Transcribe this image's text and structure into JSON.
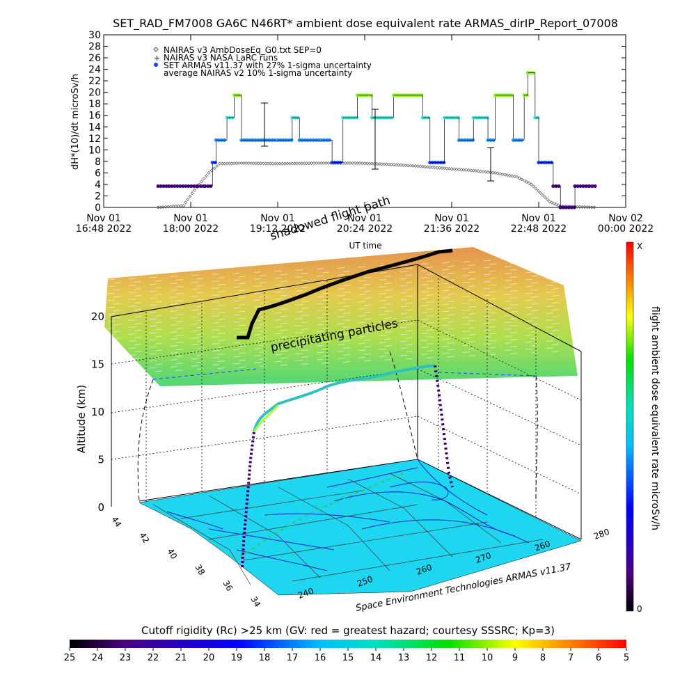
{
  "title": "SET_RAD_FM7008  GA6C N46RT* ambient dose equivalent rate ARMAS_dirIP_Report_07008",
  "chart_data": [
    {
      "type": "scatter",
      "ylabel": "dH*(10)/dt microSv/h",
      "xlabel": "UT time",
      "ylim": [
        0,
        30
      ],
      "yticks": [
        "0",
        "2",
        "4",
        "6",
        "8",
        "10",
        "12",
        "14",
        "16",
        "18",
        "20",
        "22",
        "24",
        "26",
        "28",
        "30"
      ],
      "xticks": [
        {
          "l1": "Nov 01",
          "l2": "16:48 2022"
        },
        {
          "l1": "Nov 01",
          "l2": "18:00 2022"
        },
        {
          "l1": "Nov 01",
          "l2": "19:12 2022"
        },
        {
          "l1": "Nov 01",
          "l2": "20:24 2022"
        },
        {
          "l1": "Nov 01",
          "l2": "21:36 2022"
        },
        {
          "l1": "Nov 01",
          "l2": "22:48 2022"
        },
        {
          "l1": "Nov 02",
          "l2": "00:00 2022"
        }
      ],
      "xrange_hours": [
        16.8,
        24.0
      ],
      "legend": [
        "NAIRAS v3 AmbDoseEq_G0.txt SEP=0",
        "NAIRAS v3 NASA LaRC runs",
        "SET ARMAS v11.37 with 27% 1-sigma uncertainty",
        "average NAIRAS v2 10% 1-sigma uncertainty"
      ],
      "legend_position": "top-left",
      "series_nairas": [
        [
          17.55,
          0
        ],
        [
          17.9,
          0.3
        ],
        [
          18.05,
          3
        ],
        [
          18.25,
          6
        ],
        [
          18.4,
          7.6
        ],
        [
          18.7,
          7.7
        ],
        [
          19.2,
          7.6
        ],
        [
          19.8,
          7.7
        ],
        [
          20.3,
          7.7
        ],
        [
          20.7,
          7.5
        ],
        [
          21.1,
          7.2
        ],
        [
          21.5,
          6.8
        ],
        [
          21.9,
          6.4
        ],
        [
          22.2,
          6.0
        ],
        [
          22.5,
          5.3
        ],
        [
          22.7,
          4.0
        ],
        [
          22.95,
          1.0
        ],
        [
          23.1,
          0.2
        ],
        [
          23.6,
          0
        ]
      ],
      "series_armas": [
        [
          17.55,
          3.7
        ],
        [
          17.7,
          3.7
        ],
        [
          18.1,
          3.7
        ],
        [
          18.2,
          3.7
        ],
        [
          18.3,
          7.8
        ],
        [
          18.35,
          11.7
        ],
        [
          18.5,
          15.6
        ],
        [
          18.6,
          19.5
        ],
        [
          18.7,
          11.7
        ],
        [
          19.2,
          11.7
        ],
        [
          19.4,
          15.6
        ],
        [
          19.5,
          11.7
        ],
        [
          19.8,
          11.7
        ],
        [
          19.95,
          7.8
        ],
        [
          20.1,
          15.6
        ],
        [
          20.3,
          19.5
        ],
        [
          20.5,
          15.6
        ],
        [
          20.8,
          19.5
        ],
        [
          21.2,
          15.6
        ],
        [
          21.3,
          7.8
        ],
        [
          21.5,
          15.6
        ],
        [
          21.7,
          11.7
        ],
        [
          21.9,
          15.6
        ],
        [
          22.1,
          11.7
        ],
        [
          22.2,
          19.5
        ],
        [
          22.45,
          11.7
        ],
        [
          22.6,
          19.5
        ],
        [
          22.65,
          23.4
        ],
        [
          22.75,
          15.6
        ],
        [
          22.8,
          7.8
        ],
        [
          22.9,
          7.8
        ],
        [
          23.0,
          3.7
        ],
        [
          23.1,
          0
        ],
        [
          23.3,
          3.7
        ],
        [
          23.5,
          3.7
        ]
      ]
    },
    {
      "type": "surface3d",
      "ylabel": "Altitude (km)",
      "zticks": [
        "0",
        "5",
        "10",
        "15",
        "20"
      ],
      "lat_ticks": [
        "44",
        "42",
        "40",
        "38",
        "36",
        "34"
      ],
      "lon_ticks": [
        "240",
        "250",
        "260",
        "270",
        "260",
        "280"
      ],
      "colorbar_label": "flight ambient dose equivalent rate microSv/h",
      "colorbar_top": "X",
      "colorbar_bottom": "0",
      "annotations": [
        "shadowed flight path",
        "precipitating particles"
      ],
      "credit": "Space Environment Technologies ARMAS v11.37"
    }
  ],
  "rigidity": {
    "label": "Cutoff rigidity (Rc) >25 km (GV: red = greatest hazard; courtesy SSSRC; Kp=3)",
    "ticks": [
      "25",
      "24",
      "23",
      "22",
      "21",
      "20",
      "19",
      "18",
      "17",
      "16",
      "15",
      "14",
      "13",
      "12",
      "11",
      "10",
      "9",
      "8",
      "7",
      "6",
      "5"
    ]
  },
  "colors": {
    "nairas": "#555555",
    "armas_low": "#4b0082",
    "armas_mid": "#1e90ff",
    "armas_high": "#40e0d0",
    "armas_top": "#7cfc00",
    "map": "#1ed6f0"
  }
}
